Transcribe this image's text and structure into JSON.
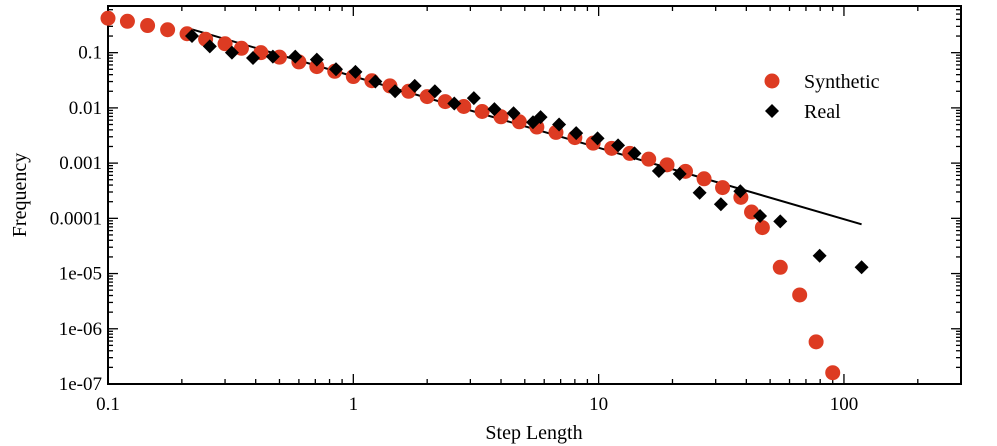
{
  "chart_data": {
    "type": "scatter",
    "title": "",
    "xlabel": "Step Length",
    "ylabel": "Frequency",
    "xscale": "log",
    "yscale": "log",
    "xlim": [
      0.1,
      300
    ],
    "ylim": [
      1e-07,
      0.7
    ],
    "grid": false,
    "legend_position": "top-right",
    "x_ticks": [
      {
        "value": 0.1,
        "label": "0.1"
      },
      {
        "value": 1,
        "label": "1"
      },
      {
        "value": 10,
        "label": "10"
      },
      {
        "value": 100,
        "label": "100"
      }
    ],
    "y_ticks": [
      {
        "value": 1e-07,
        "label": "1e-07"
      },
      {
        "value": 1e-06,
        "label": "1e-06"
      },
      {
        "value": 1e-05,
        "label": "1e-05"
      },
      {
        "value": 0.0001,
        "label": "0.0001"
      },
      {
        "value": 0.001,
        "label": "0.001"
      },
      {
        "value": 0.01,
        "label": "0.01"
      },
      {
        "value": 0.1,
        "label": "0.1"
      }
    ],
    "series": [
      {
        "name": "Synthetic",
        "marker": "circle",
        "color": "#dd3b22",
        "points": [
          [
            0.1,
            0.42
          ],
          [
            0.12,
            0.37
          ],
          [
            0.145,
            0.31
          ],
          [
            0.175,
            0.26
          ],
          [
            0.21,
            0.22
          ],
          [
            0.25,
            0.175
          ],
          [
            0.3,
            0.145
          ],
          [
            0.35,
            0.12
          ],
          [
            0.42,
            0.1
          ],
          [
            0.5,
            0.083
          ],
          [
            0.6,
            0.068
          ],
          [
            0.71,
            0.056
          ],
          [
            0.84,
            0.046
          ],
          [
            1.0,
            0.037
          ],
          [
            1.19,
            0.031
          ],
          [
            1.41,
            0.025
          ],
          [
            1.68,
            0.02
          ],
          [
            2.0,
            0.016
          ],
          [
            2.37,
            0.013
          ],
          [
            2.82,
            0.0106
          ],
          [
            3.35,
            0.0086
          ],
          [
            4.0,
            0.0069
          ],
          [
            4.75,
            0.0056
          ],
          [
            5.6,
            0.0045
          ],
          [
            6.7,
            0.0036
          ],
          [
            8.0,
            0.0029
          ],
          [
            9.5,
            0.0023
          ],
          [
            11.3,
            0.00185
          ],
          [
            13.4,
            0.0015
          ],
          [
            16.0,
            0.00118
          ],
          [
            19.0,
            0.00093
          ],
          [
            22.6,
            0.00071
          ],
          [
            26.9,
            0.00052
          ],
          [
            32.0,
            0.00036
          ],
          [
            38.0,
            0.00024
          ],
          [
            42.0,
            0.00013
          ],
          [
            46.5,
            6.8e-05
          ],
          [
            55.0,
            1.3e-05
          ],
          [
            66.0,
            4.1e-06
          ],
          [
            77.0,
            5.8e-07
          ],
          [
            90.0,
            1.6e-07
          ]
        ]
      },
      {
        "name": "Real",
        "marker": "diamond",
        "color": "#000000",
        "points": [
          [
            0.22,
            0.2
          ],
          [
            0.26,
            0.13
          ],
          [
            0.32,
            0.1
          ],
          [
            0.39,
            0.08
          ],
          [
            0.47,
            0.085
          ],
          [
            0.58,
            0.085
          ],
          [
            0.71,
            0.075
          ],
          [
            0.85,
            0.05
          ],
          [
            1.02,
            0.045
          ],
          [
            1.23,
            0.03
          ],
          [
            1.48,
            0.02
          ],
          [
            1.78,
            0.025
          ],
          [
            2.15,
            0.02
          ],
          [
            2.58,
            0.012
          ],
          [
            3.1,
            0.015
          ],
          [
            3.76,
            0.0095
          ],
          [
            4.5,
            0.008
          ],
          [
            5.4,
            0.0055
          ],
          [
            5.8,
            0.0068
          ],
          [
            6.9,
            0.005
          ],
          [
            8.1,
            0.0035
          ],
          [
            9.9,
            0.0028
          ],
          [
            12.0,
            0.0021
          ],
          [
            14.0,
            0.0015
          ],
          [
            17.6,
            0.00072
          ],
          [
            21.4,
            0.00064
          ],
          [
            25.8,
            0.00029
          ],
          [
            31.5,
            0.00018
          ],
          [
            37.8,
            0.00031
          ],
          [
            45.5,
            0.00011
          ],
          [
            55.0,
            8.8e-05
          ],
          [
            79.6,
            2.1e-05
          ],
          [
            118.0,
            1.3e-05
          ]
        ]
      },
      {
        "name": "",
        "type": "line",
        "color": "#000000",
        "points": [
          [
            0.21,
            0.28
          ],
          [
            118.0,
            7.8e-05
          ]
        ]
      }
    ]
  }
}
